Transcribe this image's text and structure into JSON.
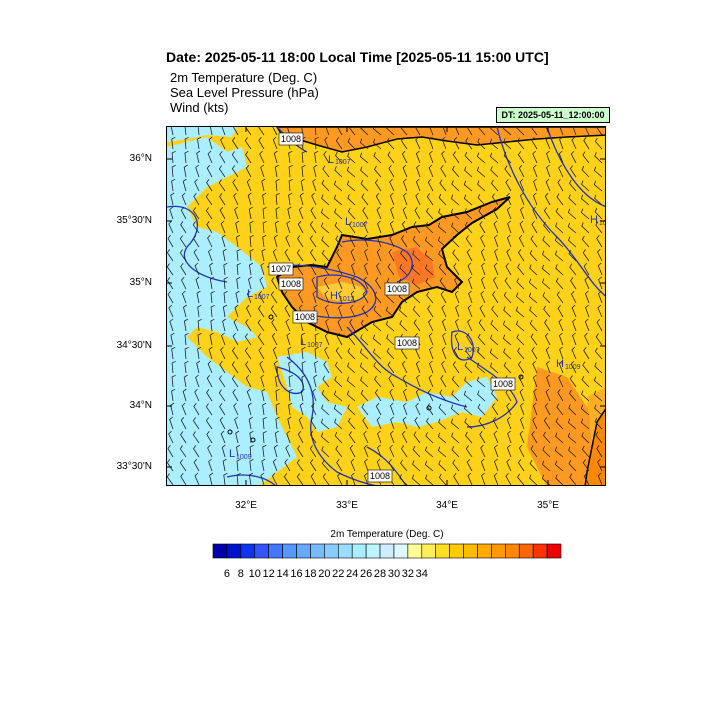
{
  "title": "Date: 2025-05-11  18:00 Local Time [2025-05-11  15:00 UTC]",
  "fields": [
    "2m Temperature (Deg. C)",
    "Sea Level Pressure   (hPa)",
    "Wind   (kts)"
  ],
  "valid_time": "DT: 2025-05-11_12:00:00",
  "lat_labels": [
    "36°N",
    "35°30'N",
    "35°N",
    "34°30'N",
    "34°N",
    "33°30'N"
  ],
  "lon_labels": [
    "32°E",
    "33°E",
    "34°E",
    "35°E"
  ],
  "colorbar": {
    "title": "2m Temperature (Deg. C)",
    "labels": [
      "6",
      "8",
      "10",
      "12",
      "14",
      "16",
      "18",
      "20",
      "22",
      "24",
      "26",
      "28",
      "30",
      "32",
      "34"
    ],
    "colors": [
      "#0000aa",
      "#0011cc",
      "#1133ee",
      "#3355ff",
      "#4477ff",
      "#5599ff",
      "#66aaff",
      "#77bbff",
      "#88ccff",
      "#99ddff",
      "#aaeeff",
      "#bbf5ff",
      "#cceeff",
      "#ddf8ff",
      "#ffff99",
      "#ffee55",
      "#ffdd22",
      "#ffcc00",
      "#ffbb00",
      "#ffaa00",
      "#ff9900",
      "#ff8800",
      "#ff6600",
      "#ff3300",
      "#ee0000"
    ]
  },
  "map": {
    "contour_labels": [
      "1008",
      "1007",
      "1008",
      "1008",
      "1008",
      "1008",
      "1008",
      "1008",
      "1008"
    ],
    "pressure_centers": [
      {
        "type": "L",
        "value": "1007"
      },
      {
        "type": "L",
        "value": "1007"
      },
      {
        "type": "L",
        "value": "1007"
      },
      {
        "type": "L",
        "value": "1007"
      },
      {
        "type": "L",
        "value": "1007"
      },
      {
        "type": "L",
        "value": "1009"
      },
      {
        "type": "H",
        "value": "1012"
      },
      {
        "type": "H",
        "value": "1009"
      },
      {
        "type": "H",
        "value": "10"
      }
    ],
    "colors": {
      "land_warm": "#ff9922",
      "sea_warm": "#ffd21a",
      "cool": "#aaeeff",
      "hot": "#ff7722",
      "contour": "#2233bb",
      "coast": "#000000"
    }
  }
}
